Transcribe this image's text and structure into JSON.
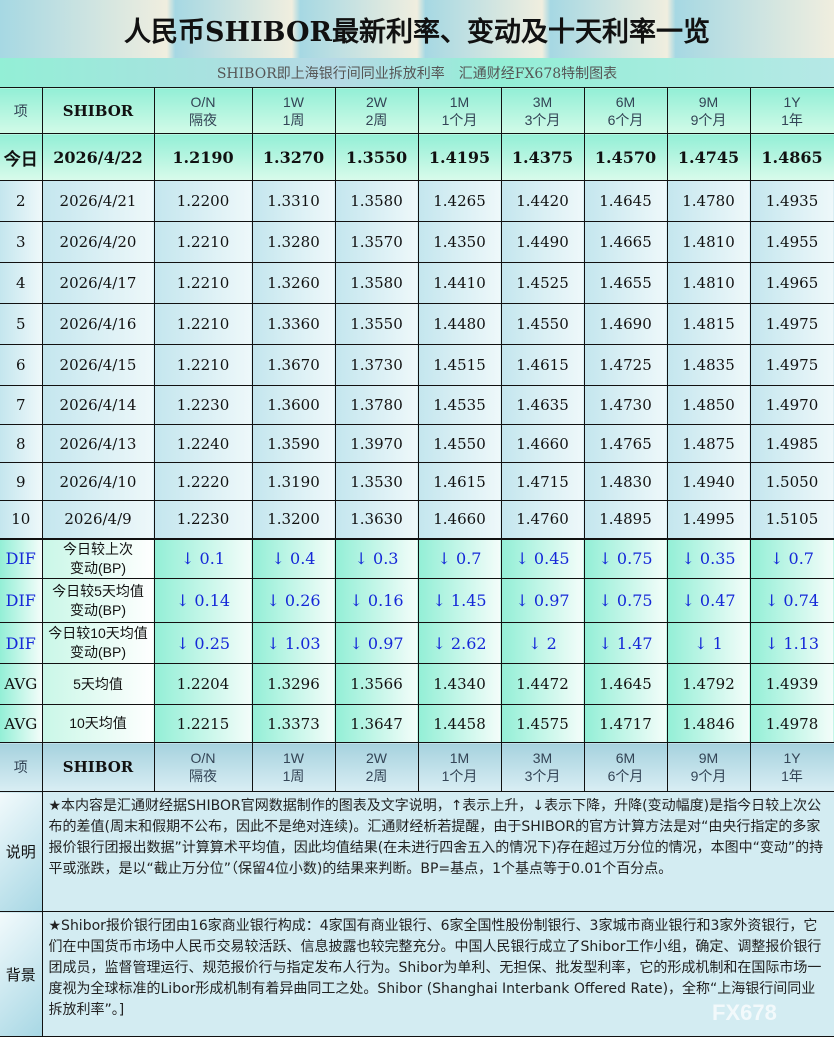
{
  "title": "人民币SHIBOR最新利率、变动及十天利率一览",
  "subtitle": "SHIBOR即上海银行间同业拆放利率　汇通财经FX678特制图表",
  "header": {
    "item": "项",
    "shibor": "SHIBOR",
    "cols": [
      [
        "O/N",
        "隔夜"
      ],
      [
        "1W",
        "1周"
      ],
      [
        "2W",
        "2周"
      ],
      [
        "1M",
        "1个月"
      ],
      [
        "3M",
        "3个月"
      ],
      [
        "6M",
        "6个月"
      ],
      [
        "9M",
        "9个月"
      ],
      [
        "1Y",
        "1年"
      ]
    ]
  },
  "today": {
    "label": "今日",
    "date": "2026/4/22",
    "values": [
      "1.2190",
      "1.3270",
      "1.3550",
      "1.4195",
      "1.4375",
      "1.4570",
      "1.4745",
      "1.4865"
    ]
  },
  "history": [
    {
      "idx": "2",
      "date": "2026/4/21",
      "values": [
        "1.2200",
        "1.3310",
        "1.3580",
        "1.4265",
        "1.4420",
        "1.4645",
        "1.4780",
        "1.4935"
      ]
    },
    {
      "idx": "3",
      "date": "2026/4/20",
      "values": [
        "1.2210",
        "1.3280",
        "1.3570",
        "1.4350",
        "1.4490",
        "1.4665",
        "1.4810",
        "1.4955"
      ]
    },
    {
      "idx": "4",
      "date": "2026/4/17",
      "values": [
        "1.2210",
        "1.3260",
        "1.3580",
        "1.4410",
        "1.4525",
        "1.4655",
        "1.4810",
        "1.4965"
      ]
    },
    {
      "idx": "5",
      "date": "2026/4/16",
      "values": [
        "1.2210",
        "1.3360",
        "1.3550",
        "1.4480",
        "1.4550",
        "1.4690",
        "1.4815",
        "1.4975"
      ]
    },
    {
      "idx": "6",
      "date": "2026/4/15",
      "values": [
        "1.2210",
        "1.3670",
        "1.3730",
        "1.4515",
        "1.4615",
        "1.4725",
        "1.4835",
        "1.4975"
      ]
    },
    {
      "idx": "7",
      "date": "2026/4/14",
      "values": [
        "1.2230",
        "1.3600",
        "1.3780",
        "1.4535",
        "1.4635",
        "1.4730",
        "1.4850",
        "1.4970"
      ]
    },
    {
      "idx": "8",
      "date": "2026/4/13",
      "values": [
        "1.2240",
        "1.3590",
        "1.3970",
        "1.4550",
        "1.4660",
        "1.4765",
        "1.4875",
        "1.4985"
      ]
    },
    {
      "idx": "9",
      "date": "2026/4/10",
      "values": [
        "1.2220",
        "1.3190",
        "1.3530",
        "1.4615",
        "1.4715",
        "1.4830",
        "1.4940",
        "1.5050"
      ]
    },
    {
      "idx": "10",
      "date": "2026/4/9",
      "values": [
        "1.2230",
        "1.3200",
        "1.3630",
        "1.4660",
        "1.4760",
        "1.4895",
        "1.4995",
        "1.5105"
      ]
    }
  ],
  "dif": [
    {
      "tag": "DIF",
      "label1": "今日较上次",
      "label2": "变动(BP)",
      "values": [
        "↓ 0.1",
        "↓ 0.4",
        "↓ 0.3",
        "↓ 0.7",
        "↓ 0.45",
        "↓ 0.75",
        "↓ 0.35",
        "↓ 0.7"
      ]
    },
    {
      "tag": "DIF",
      "label1": "今日较5天均值",
      "label2": "变动(BP)",
      "values": [
        "↓ 0.14",
        "↓ 0.26",
        "↓ 0.16",
        "↓ 1.45",
        "↓ 0.97",
        "↓ 0.75",
        "↓ 0.47",
        "↓ 0.74"
      ]
    },
    {
      "tag": "DIF",
      "label1": "今日较10天均值",
      "label2": "变动(BP)",
      "values": [
        "↓ 0.25",
        "↓ 1.03",
        "↓ 0.97",
        "↓ 2.62",
        "↓ 2",
        "↓ 1.47",
        "↓ 1",
        "↓ 1.13"
      ]
    }
  ],
  "avg": [
    {
      "tag": "AVG",
      "label": "5天均值",
      "values": [
        "1.2204",
        "1.3296",
        "1.3566",
        "1.4340",
        "1.4472",
        "1.4645",
        "1.4792",
        "1.4939"
      ]
    },
    {
      "tag": "AVG",
      "label": "10天均值",
      "values": [
        "1.2215",
        "1.3373",
        "1.3647",
        "1.4458",
        "1.4575",
        "1.4717",
        "1.4846",
        "1.4978"
      ]
    }
  ],
  "notes": [
    {
      "label": "说明",
      "text": "★本内容是汇通财经据SHIBOR官网数据制作的图表及文字说明，↑表示上升，↓表示下降，升降(变动幅度)是指今日较上次公布的差值(周末和假期不公布，因此不是绝对连续)。汇通财经析若提醒，由于SHIBOR的官方计算方法是对“由央行指定的多家报价银行团报出数据”计算算术平均值，因此均值结果(在未进行四舍五入的情况下)存在超过万分位的情况，本图中“变动”的持平或涨跌，是以“截止万分位”（保留4位小数)的结果来判断。BP=基点，1个基点等于0.01个百分点。"
    },
    {
      "label": "背景",
      "text": "★Shibor报价银行团由16家商业银行构成：4家国有商业银行、6家全国性股份制银行、3家城市商业银行和3家外资银行，它们在中国货币市场中人民币交易较活跃、信息披露也较完整充分。中国人民银行成立了Shibor工作小组，确定、调整报价银行团成员，监督管理运行、规范报价行与指定发布人行为。Shibor为单利、无担保、批发型利率，它的形成机制和在国际市场一度视为全球标准的Libor形成机制有着异曲同工之处。Shibor (Shanghai Interbank Offered Rate)，全称“上海银行间同业拆放利率”。]"
    }
  ],
  "watermark": "FX678"
}
